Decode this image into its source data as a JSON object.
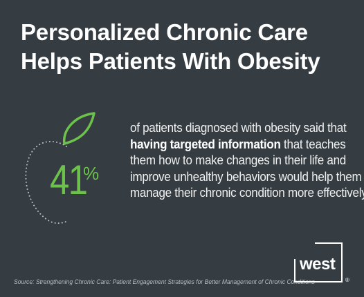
{
  "title": {
    "line1": "Personalized Chronic Care",
    "line2": "Helps Patients With Obesity"
  },
  "stat": {
    "value": "41",
    "unit": "%"
  },
  "body": {
    "line1": "of patients diagnosed with obesity said that",
    "line2_bold": "having targeted information",
    "line2_rest": " that teaches",
    "line3": "them how to make changes in their life and",
    "line4": "improve unhealthy behaviors would help them",
    "line5": "manage their chronic condition more effectively."
  },
  "source": "Source: Strengthening Chronic Care: Patient Engagement Strategies for Better Management of Chronic Conditions",
  "logo": {
    "word": "west",
    "reg": "®"
  },
  "colors": {
    "background": "#353d42",
    "accent": "#6cc24a",
    "text": "#ffffff"
  }
}
